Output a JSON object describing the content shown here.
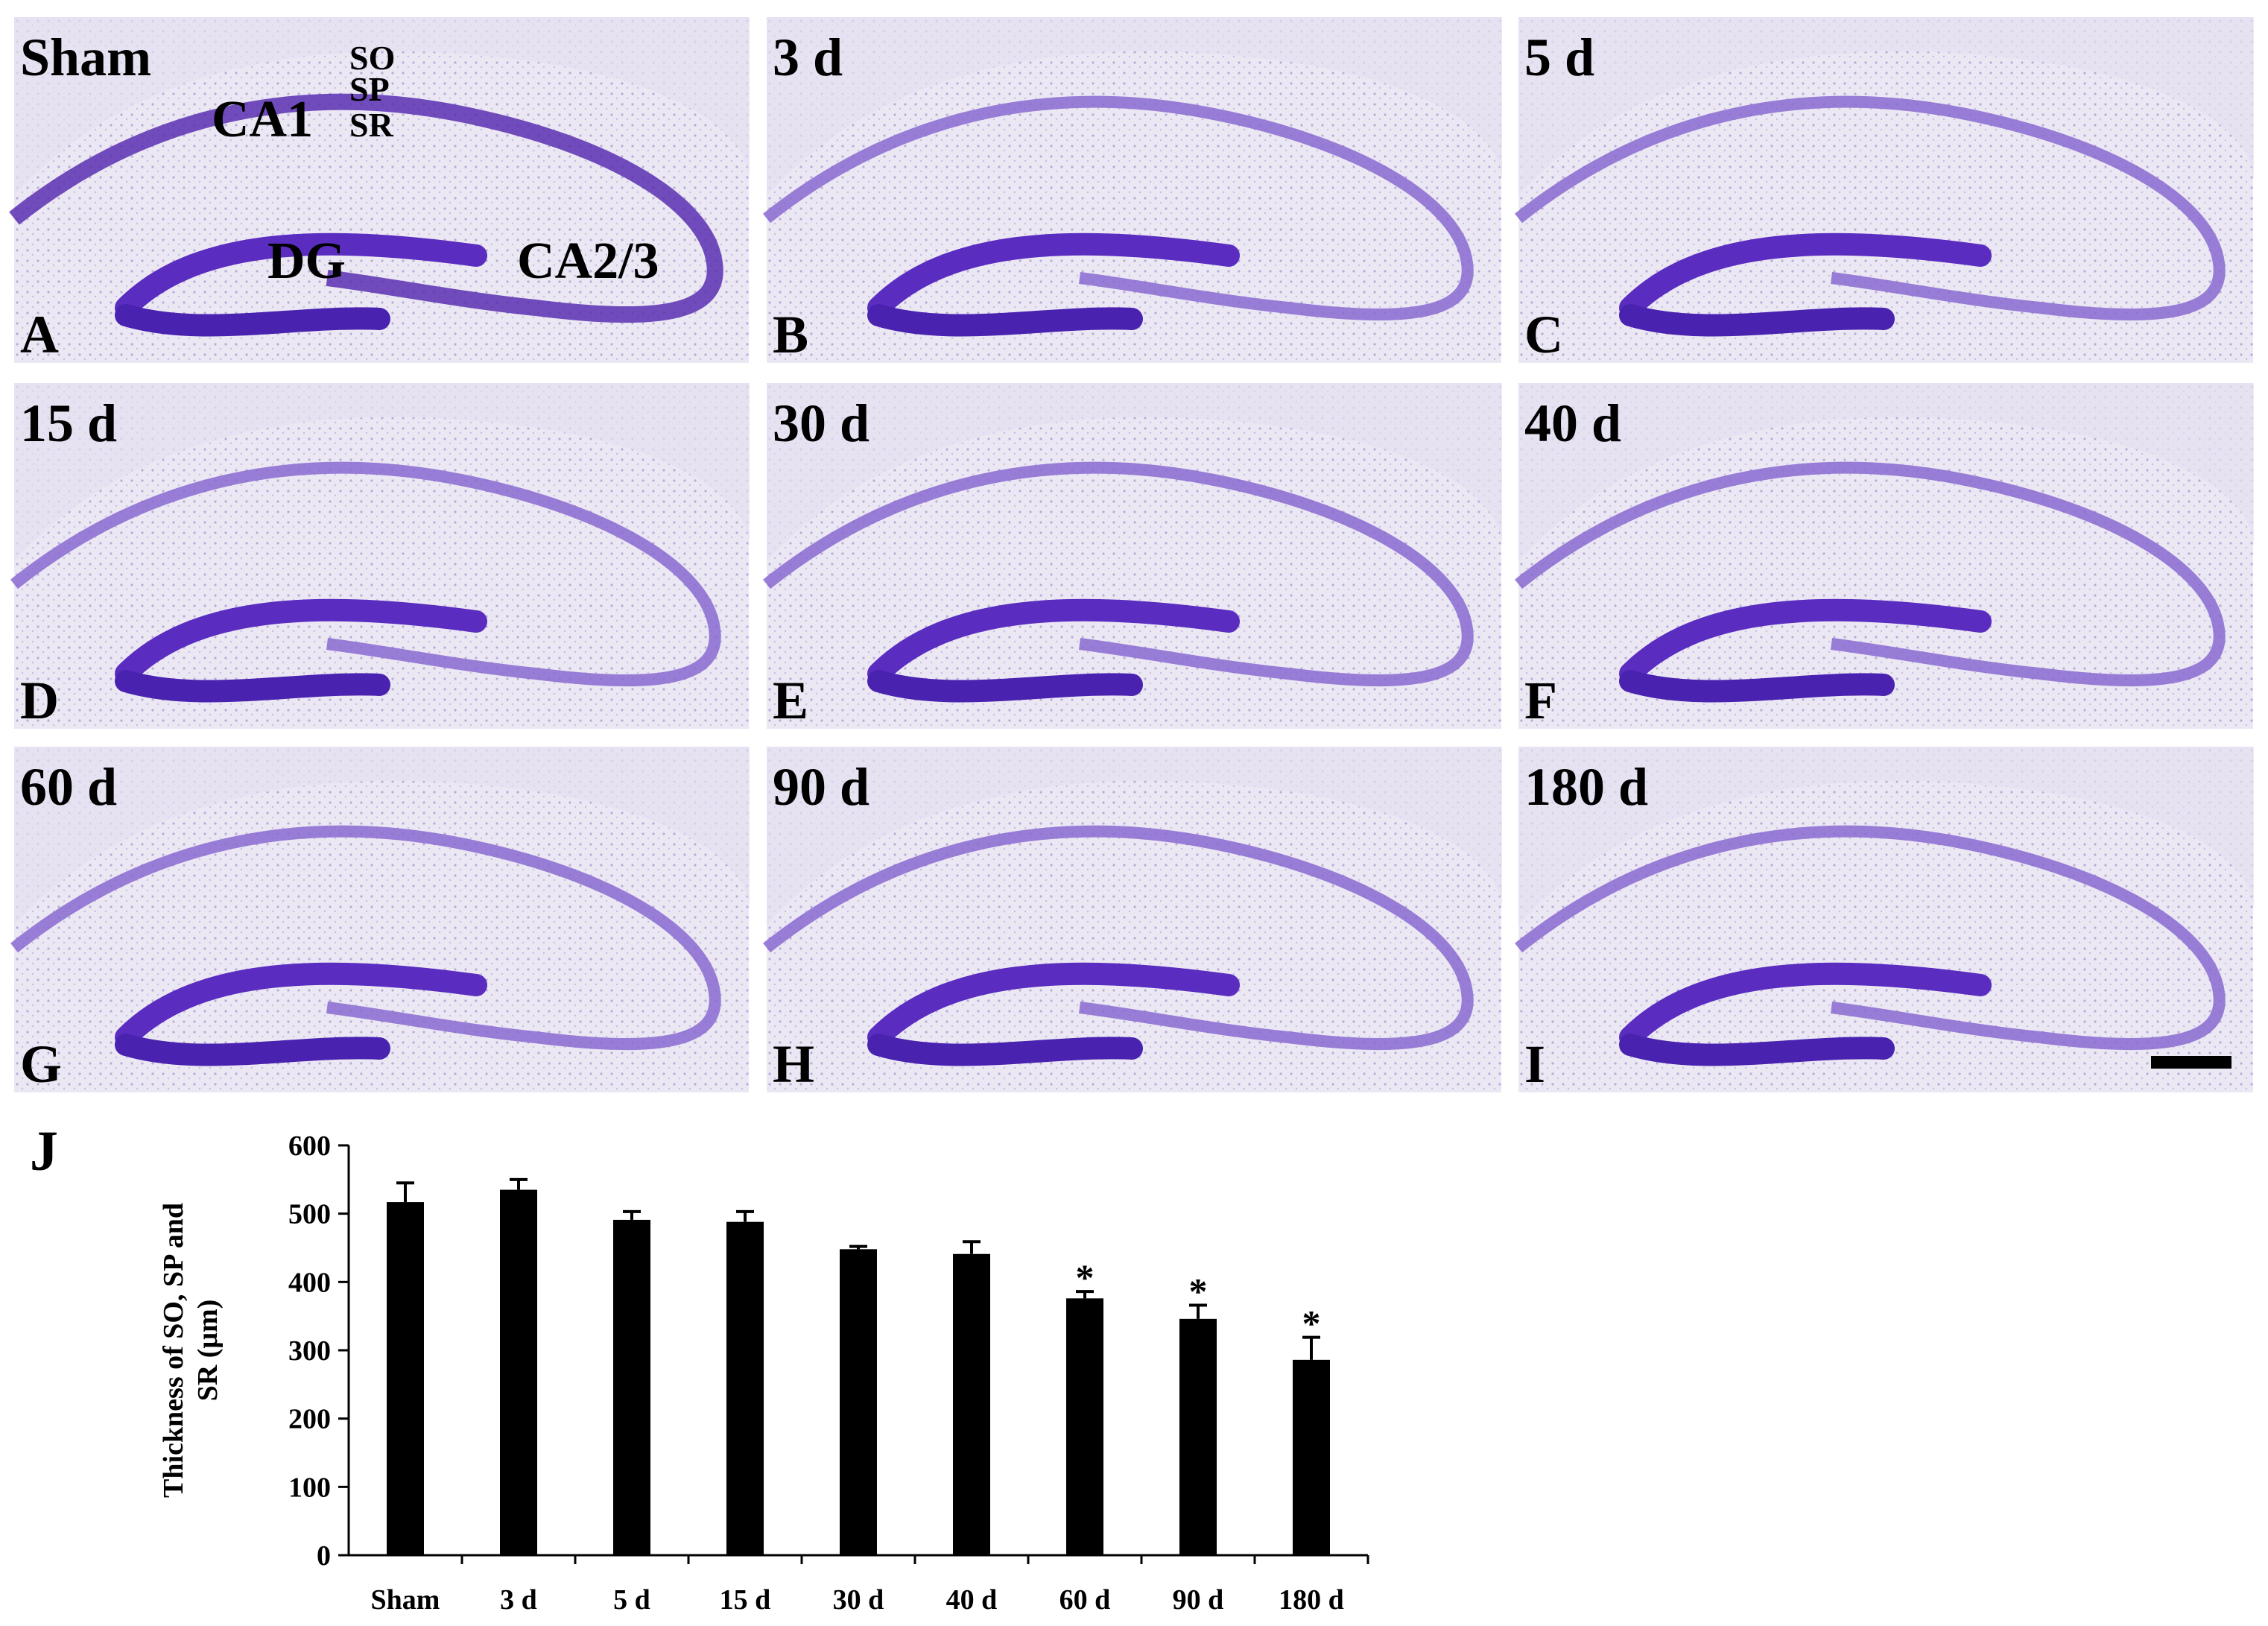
{
  "panels": [
    {
      "letter": "A",
      "title": "Sham"
    },
    {
      "letter": "B",
      "title": "3 d"
    },
    {
      "letter": "C",
      "title": "5 d"
    },
    {
      "letter": "D",
      "title": "15 d"
    },
    {
      "letter": "E",
      "title": "30 d"
    },
    {
      "letter": "F",
      "title": "40 d"
    },
    {
      "letter": "G",
      "title": "60 d"
    },
    {
      "letter": "H",
      "title": "90 d"
    },
    {
      "letter": "I",
      "title": "180 d"
    }
  ],
  "annotations": {
    "so": "SO",
    "sp": "SP",
    "sr": "SR",
    "ca1": "CA1",
    "dg": "DG",
    "ca23": "CA2/3"
  },
  "chart_data": {
    "type": "bar",
    "panel_label": "J",
    "ylabel": [
      "Thickness of SO, SP and",
      "SR (μm)"
    ],
    "categories": [
      "Sham",
      "3 d",
      "5 d",
      "15 d",
      "30 d",
      "40 d",
      "60 d",
      "90 d",
      "180 d"
    ],
    "values": [
      517,
      535,
      491,
      488,
      448,
      441,
      376,
      346,
      286
    ],
    "errors": [
      28,
      15,
      12,
      15,
      4,
      18,
      10,
      20,
      33
    ],
    "markers": [
      null,
      null,
      null,
      null,
      null,
      null,
      "*",
      "*",
      "*"
    ],
    "color": "#000000",
    "ylim": [
      0,
      600
    ],
    "yticks": [
      0,
      100,
      200,
      300,
      400,
      500,
      600
    ],
    "grid": false
  }
}
